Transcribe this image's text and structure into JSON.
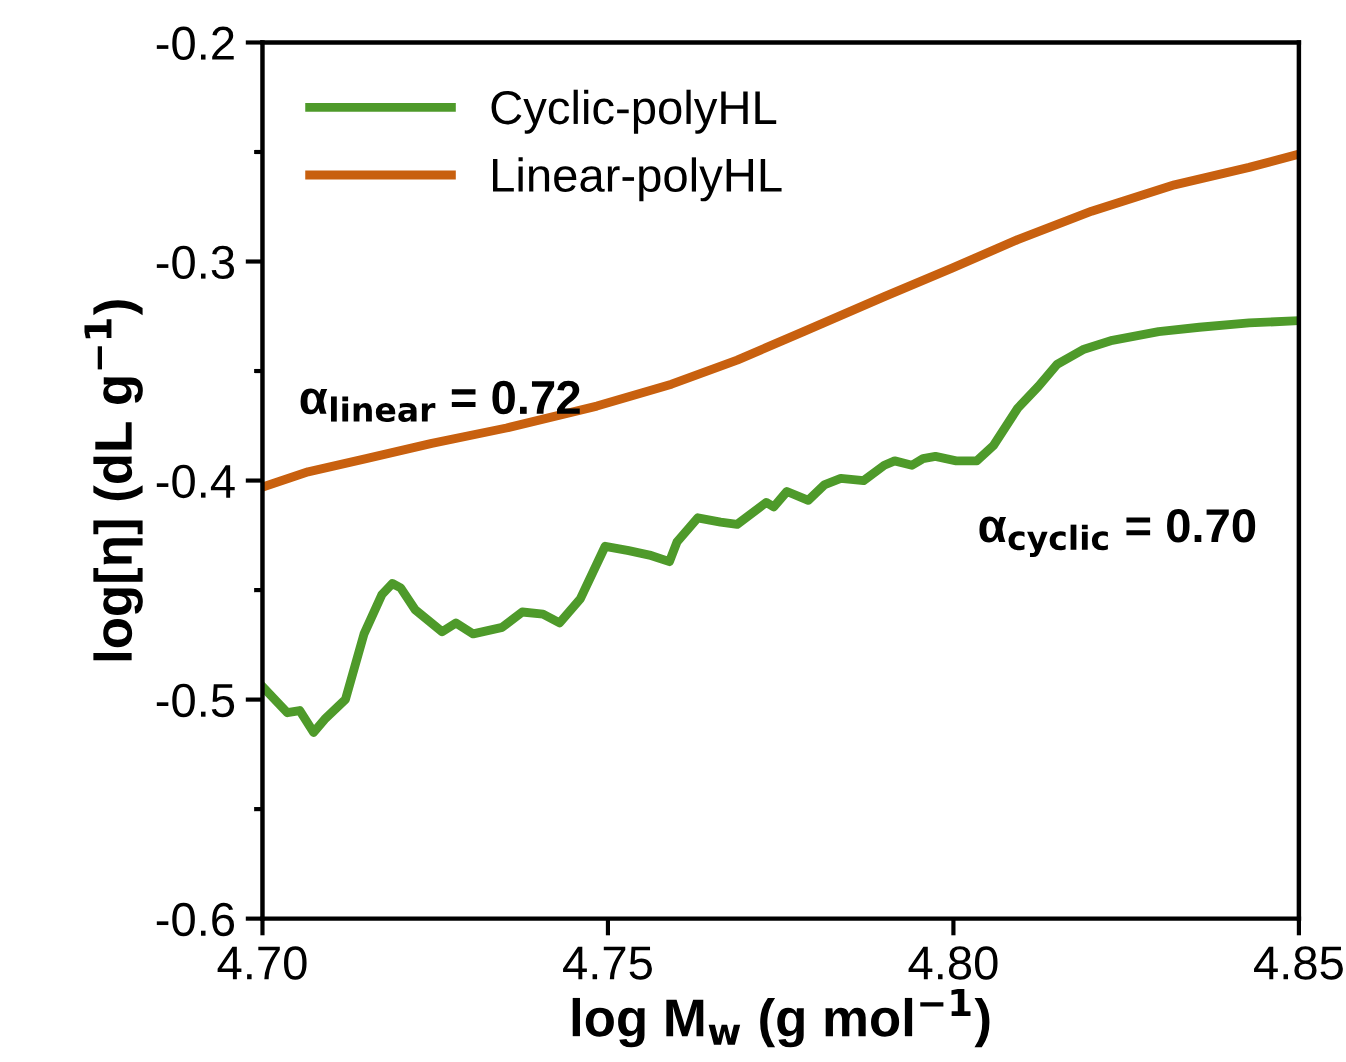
{
  "chart_data": {
    "type": "line",
    "xlabel": "log M$_{w}$ (g mol$^{−1}$)",
    "ylabel": "log[η] (dL g$^{−1}$)",
    "xlim": [
      4.7,
      4.85
    ],
    "xticks": [
      {
        "value": 4.7,
        "label": "4.70"
      },
      {
        "value": 4.75,
        "label": "4.75"
      },
      {
        "value": 4.8,
        "label": "4.80"
      },
      {
        "value": 4.85,
        "label": "4.85"
      }
    ],
    "ylim": [
      -0.6,
      -0.2
    ],
    "yticks": [
      -0.6,
      -0.5,
      -0.4,
      -0.3,
      -0.2
    ],
    "grid": false,
    "legend": "top left",
    "line_style": "solid",
    "marker": "none",
    "annotations": [
      "α$_{linear}$ = 0.72",
      "α$_{cyclic}$ = 0.70"
    ],
    "series": [
      {
        "name": "Cyclic-polyHL",
        "color": "#4e9a2a",
        "x": [
          4.7,
          4.7036,
          4.7054,
          4.7074,
          4.709,
          4.712,
          4.7147,
          4.7173,
          4.7188,
          4.72,
          4.7221,
          4.726,
          4.728,
          4.7305,
          4.7347,
          4.7376,
          4.7406,
          4.743,
          4.746,
          4.7496,
          4.753,
          4.756,
          4.7589,
          4.76,
          4.763,
          4.7663,
          4.7687,
          4.7729,
          4.774,
          4.7759,
          4.779,
          4.7813,
          4.7837,
          4.787,
          4.79,
          4.7915,
          4.794,
          4.7956,
          4.7974,
          4.8004,
          4.8034,
          4.8058,
          4.8093,
          4.8123,
          4.815,
          4.8189,
          4.823,
          4.8297,
          4.8356,
          4.8428,
          4.85
        ],
        "values": [
          -0.494,
          -0.506,
          -0.505,
          -0.515,
          -0.509,
          -0.5,
          -0.47,
          -0.452,
          -0.447,
          -0.449,
          -0.459,
          -0.469,
          -0.465,
          -0.47,
          -0.467,
          -0.46,
          -0.461,
          -0.465,
          -0.454,
          -0.43,
          -0.432,
          -0.434,
          -0.437,
          -0.428,
          -0.417,
          -0.419,
          -0.42,
          -0.41,
          -0.412,
          -0.405,
          -0.409,
          -0.402,
          -0.399,
          -0.4,
          -0.393,
          -0.391,
          -0.393,
          -0.39,
          -0.389,
          -0.391,
          -0.391,
          -0.384,
          -0.367,
          -0.357,
          -0.347,
          -0.34,
          -0.336,
          -0.332,
          -0.33,
          -0.328,
          -0.327
        ]
      },
      {
        "name": "Linear-polyHL",
        "color": "#c8600f",
        "x": [
          4.7,
          4.7066,
          4.715,
          4.7245,
          4.7353,
          4.7484,
          4.7592,
          4.7687,
          4.7783,
          4.79,
          4.7998,
          4.8093,
          4.82,
          4.832,
          4.8428,
          4.85
        ],
        "values": [
          -0.403,
          -0.396,
          -0.39,
          -0.383,
          -0.376,
          -0.366,
          -0.356,
          -0.345,
          -0.332,
          -0.316,
          -0.303,
          -0.29,
          -0.277,
          -0.265,
          -0.257,
          -0.251
        ]
      }
    ]
  }
}
